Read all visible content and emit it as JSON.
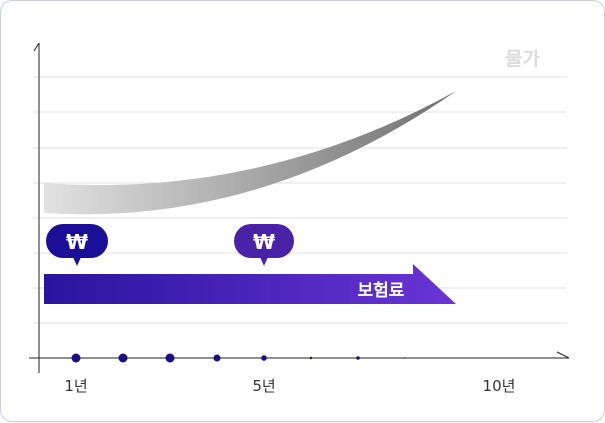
{
  "legend": {
    "price_label": "물가",
    "premium_label": "보험료"
  },
  "badges": [
    {
      "symbol": "₩"
    },
    {
      "symbol": "₩"
    }
  ],
  "x_axis": {
    "labels": [
      "1년",
      "5년",
      "10년"
    ]
  },
  "colors": {
    "premium_start": "#2a149e",
    "premium_end": "#6a35d6",
    "badge1": "#1a0f96",
    "badge2": "#4a22a8",
    "price_light": "#e2e2e2",
    "price_dark": "#6f6f6f",
    "dots": "#1a1080"
  }
}
